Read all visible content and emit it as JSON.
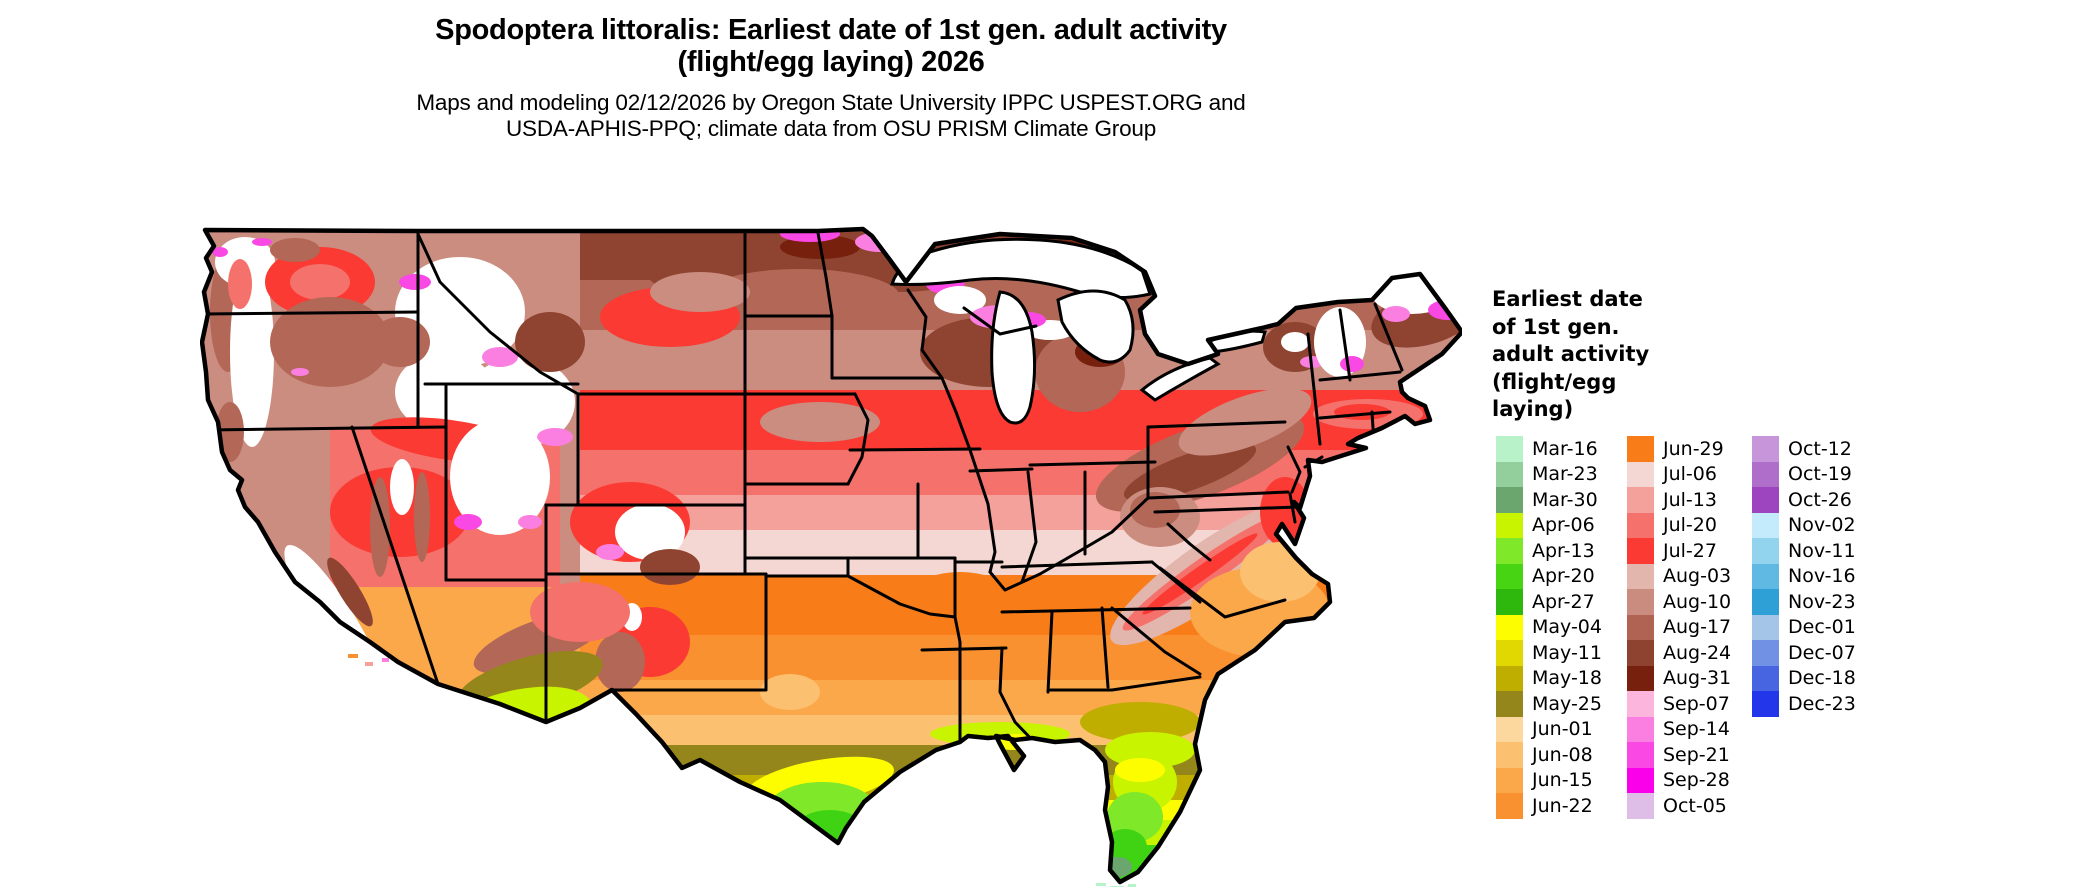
{
  "header": {
    "title": "Spodoptera littoralis: Earliest date of 1st gen. adult activity\n(flight/egg laying) 2026",
    "subtitle": "Maps and modeling 02/12/2026 by Oregon State University IPPC USPEST.ORG and\nUSDA-APHIS-PPQ; climate data from OSU PRISM Climate Group"
  },
  "legend": {
    "title": "Earliest date\nof 1st gen.\nadult activity\n(flight/egg\nlaying)",
    "columns": [
      [
        {
          "label": "Mar-16",
          "color": "#b8f2c8"
        },
        {
          "label": "Mar-23",
          "color": "#93cf9d"
        },
        {
          "label": "Mar-30",
          "color": "#6aa66e"
        },
        {
          "label": "Apr-06",
          "color": "#c8f400"
        },
        {
          "label": "Apr-13",
          "color": "#7ee829"
        },
        {
          "label": "Apr-20",
          "color": "#47d513"
        },
        {
          "label": "Apr-27",
          "color": "#2eb80d"
        },
        {
          "label": "May-04",
          "color": "#fdfd00"
        },
        {
          "label": "May-11",
          "color": "#e0d800"
        },
        {
          "label": "May-18",
          "color": "#bfae00"
        },
        {
          "label": "May-25",
          "color": "#95861b"
        },
        {
          "label": "Jun-01",
          "color": "#fcd89e"
        },
        {
          "label": "Jun-08",
          "color": "#fcc071"
        },
        {
          "label": "Jun-15",
          "color": "#fba84b"
        },
        {
          "label": "Jun-22",
          "color": "#fa9130"
        }
      ],
      [
        {
          "label": "Jun-29",
          "color": "#f87d18"
        },
        {
          "label": "Jul-06",
          "color": "#f4d7d2"
        },
        {
          "label": "Jul-13",
          "color": "#f4a19b"
        },
        {
          "label": "Jul-20",
          "color": "#f5716b"
        },
        {
          "label": "Jul-27",
          "color": "#fa3a33"
        },
        {
          "label": "Aug-03",
          "color": "#e2b5ad"
        },
        {
          "label": "Aug-10",
          "color": "#ca8c7f"
        },
        {
          "label": "Aug-17",
          "color": "#b16353"
        },
        {
          "label": "Aug-24",
          "color": "#8e4330"
        },
        {
          "label": "Aug-31",
          "color": "#76200d"
        },
        {
          "label": "Sep-07",
          "color": "#fcb6de"
        },
        {
          "label": "Sep-14",
          "color": "#fa7fe1"
        },
        {
          "label": "Sep-21",
          "color": "#fa48e4"
        },
        {
          "label": "Sep-28",
          "color": "#fa00ea"
        },
        {
          "label": "Oct-05",
          "color": "#debde6"
        }
      ],
      [
        {
          "label": "Oct-12",
          "color": "#c795da"
        },
        {
          "label": "Oct-19",
          "color": "#b06ecb"
        },
        {
          "label": "Oct-26",
          "color": "#9c45be"
        },
        {
          "label": "Nov-02",
          "color": "#c3ebfb"
        },
        {
          "label": "Nov-11",
          "color": "#92d4ee"
        },
        {
          "label": "Nov-16",
          "color": "#60b9e2"
        },
        {
          "label": "Nov-23",
          "color": "#2ea0d6"
        },
        {
          "label": "Dec-01",
          "color": "#a4c5e7"
        },
        {
          "label": "Dec-07",
          "color": "#7191e4"
        },
        {
          "label": "Dec-18",
          "color": "#4765e1"
        },
        {
          "label": "Dec-23",
          "color": "#2336e9"
        }
      ]
    ]
  },
  "map": {
    "region": "Contiguous United States",
    "background": "#ffffff",
    "boundary_color": "#000000"
  }
}
